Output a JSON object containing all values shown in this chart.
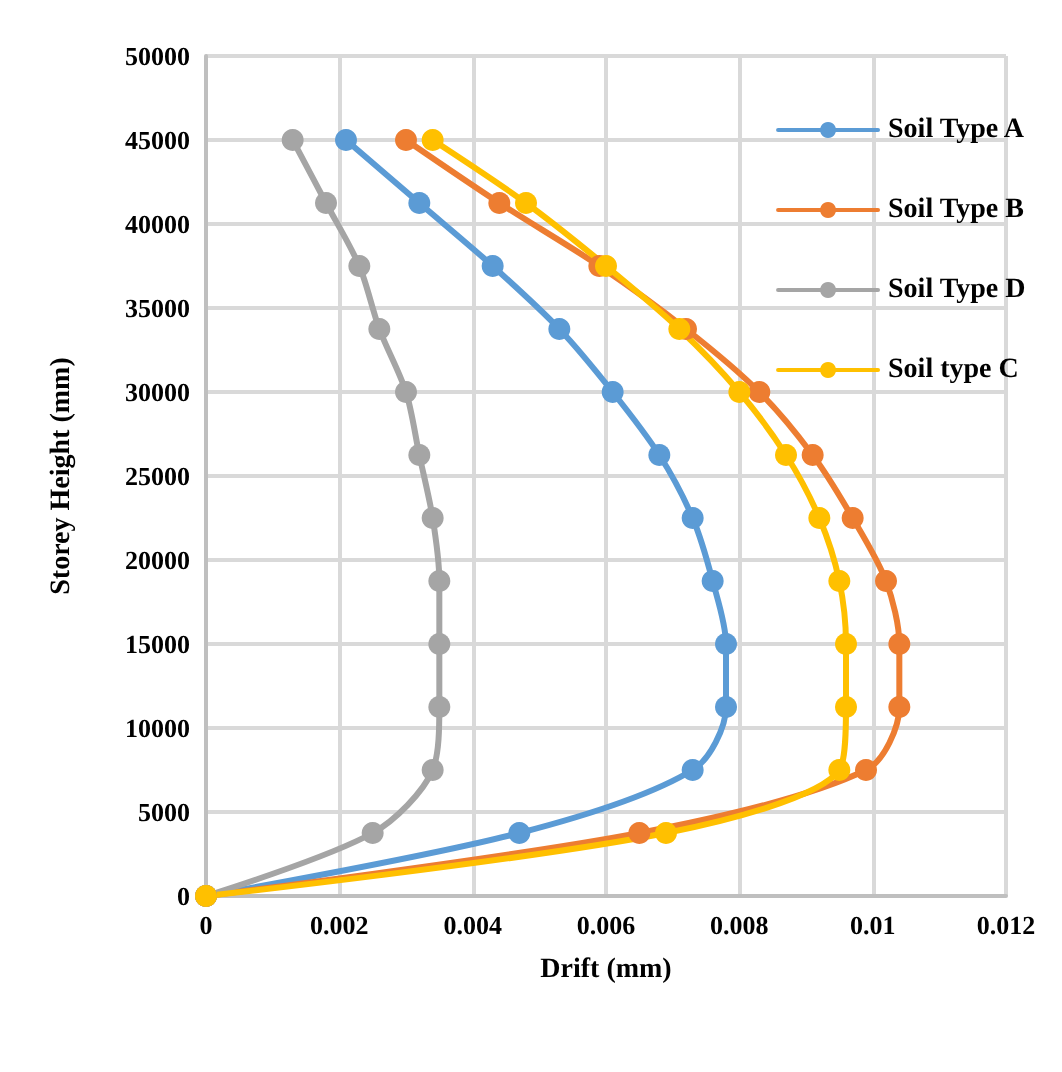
{
  "chart_data": {
    "type": "line",
    "xlabel": "Drift (mm)",
    "ylabel": "Storey Height (mm)",
    "xlim": [
      0,
      0.012
    ],
    "xticks": [
      0,
      0.002,
      0.004,
      0.006,
      0.008,
      0.01,
      0.012
    ],
    "ylim": [
      0,
      50000
    ],
    "yticks": [
      0,
      5000,
      10000,
      15000,
      20000,
      25000,
      30000,
      35000,
      40000,
      45000,
      50000
    ],
    "grid": true,
    "legend": "top right",
    "marker": "circle",
    "line_style": "solid",
    "series": [
      {
        "name": "Soil Type A",
        "color": "#5b9bd5",
        "x": [
          0,
          0.0047,
          0.0073,
          0.0078,
          0.0078,
          0.0076,
          0.0073,
          0.0068,
          0.0061,
          0.0053,
          0.0043,
          0.0032,
          0.0021
        ],
        "values": [
          0,
          3750,
          7500,
          11250,
          15000,
          18750,
          22500,
          26250,
          30000,
          33750,
          37500,
          41250,
          45000
        ]
      },
      {
        "name": "Soil Type B",
        "color": "#ed7d31",
        "x": [
          0,
          0.0065,
          0.0099,
          0.0104,
          0.0104,
          0.0102,
          0.0097,
          0.0091,
          0.0083,
          0.0072,
          0.0059,
          0.0044,
          0.003
        ],
        "values": [
          0,
          3750,
          7500,
          11250,
          15000,
          18750,
          22500,
          26250,
          30000,
          33750,
          37500,
          41250,
          45000
        ]
      },
      {
        "name": "Soil Type D",
        "color": "#a5a5a5",
        "x": [
          0,
          0.0025,
          0.0034,
          0.0035,
          0.0035,
          0.0035,
          0.0034,
          0.0032,
          0.003,
          0.0026,
          0.0023,
          0.0018,
          0.0013
        ],
        "values": [
          0,
          3750,
          7500,
          11250,
          15000,
          18750,
          22500,
          26250,
          30000,
          33750,
          37500,
          41250,
          45000
        ]
      },
      {
        "name": "Soil type C",
        "color": "#ffc000",
        "x": [
          0,
          0.0069,
          0.0095,
          0.0096,
          0.0096,
          0.0095,
          0.0092,
          0.0087,
          0.008,
          0.0071,
          0.006,
          0.0048,
          0.0034
        ],
        "values": [
          0,
          3750,
          7500,
          11250,
          15000,
          18750,
          22500,
          26250,
          30000,
          33750,
          37500,
          41250,
          45000
        ]
      }
    ]
  }
}
